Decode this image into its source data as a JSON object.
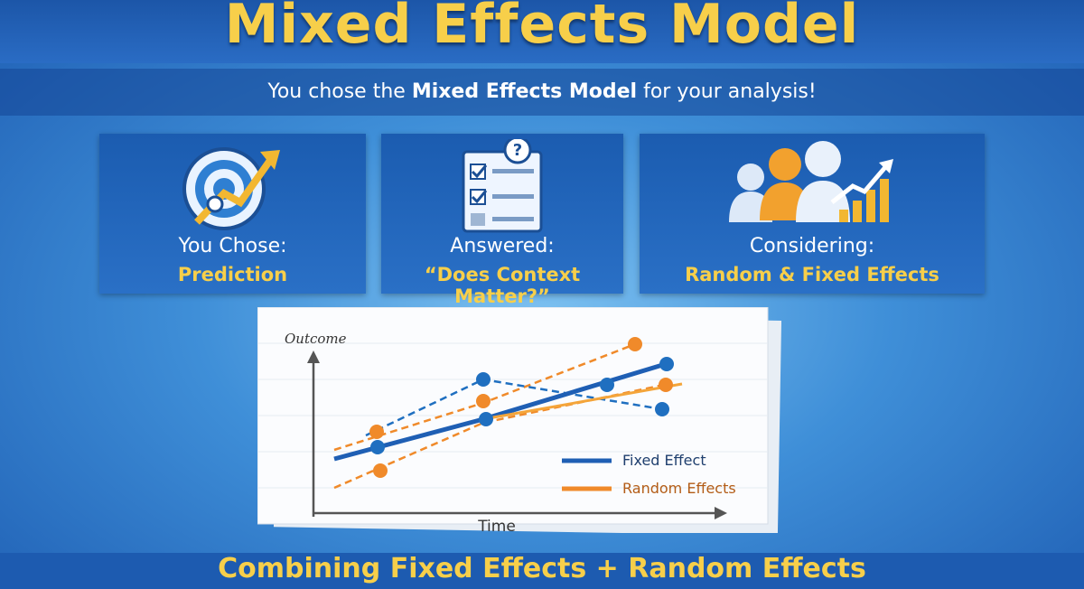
{
  "header": {
    "title": "Mixed Effects Model",
    "subtitle": {
      "before": "You chose the ",
      "bold": "Mixed Effects Model",
      "after": " for your analysis!"
    }
  },
  "cards": [
    {
      "label": "You Chose:",
      "value": "Prediction"
    },
    {
      "label": "Answered:",
      "value": "“Does Context Matter?”"
    },
    {
      "label": "Considering:",
      "value": "Random & Fixed Effects"
    }
  ],
  "chart": {
    "y_label": "Outcome",
    "x_label": "Time",
    "legend": [
      "Fixed Effect",
      "Random Effects"
    ]
  },
  "footer": "Combining Fixed Effects + Random Effects"
}
